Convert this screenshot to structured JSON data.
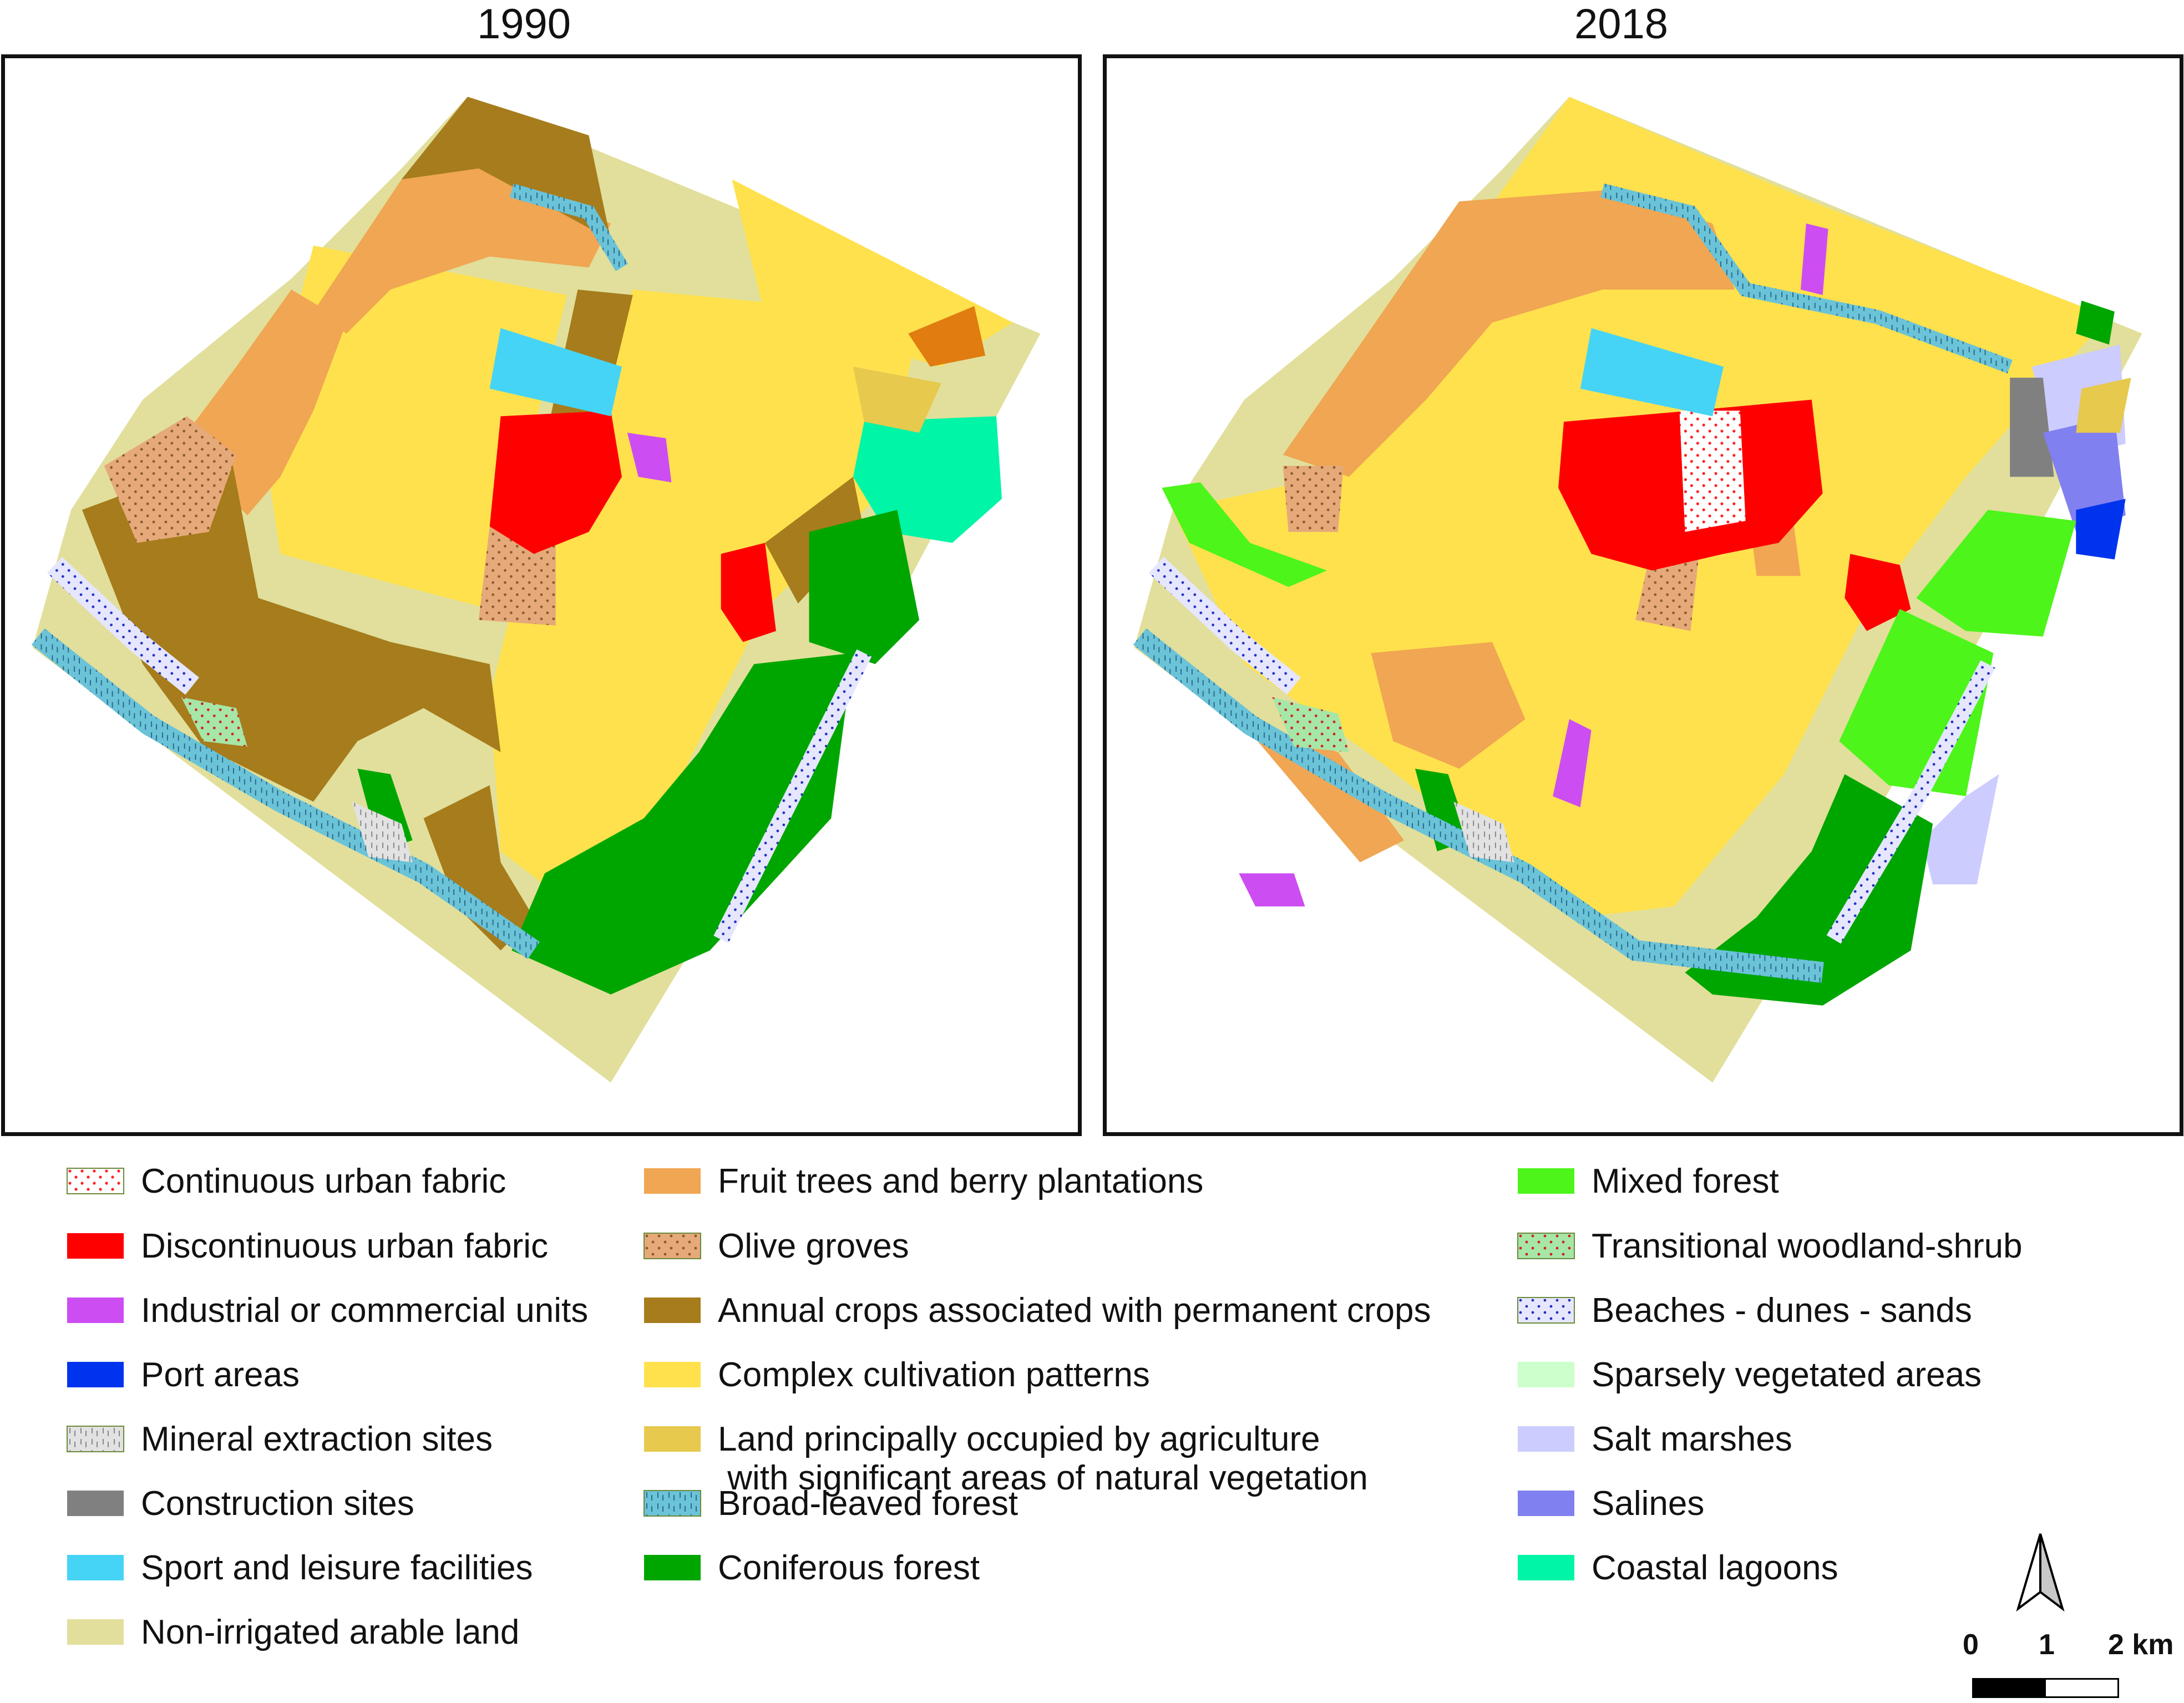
{
  "maps": [
    {
      "title": "1990"
    },
    {
      "title": "2018"
    }
  ],
  "legend": [
    {
      "label": "Continuous urban fabric",
      "color": "#ffffff",
      "pattern": "dots-red"
    },
    {
      "label": "Discontinuous urban fabric",
      "color": "#ff0000"
    },
    {
      "label": "Industrial or commercial units",
      "color": "#cc4df2"
    },
    {
      "label": "Port areas",
      "color": "#0033ee"
    },
    {
      "label": "Mineral extraction sites",
      "color": "#e2e2e2",
      "pattern": "dashes-gray"
    },
    {
      "label": "Construction sites",
      "color": "#808080"
    },
    {
      "label": "Sport and leisure facilities",
      "color": "#45d4f5"
    },
    {
      "label": "Non-irrigated arable land",
      "color": "#e1df9b"
    },
    {
      "label": "Fruit trees and berry plantations",
      "color": "#f0a652"
    },
    {
      "label": "Olive groves",
      "color": "#e6a97a",
      "pattern": "dots-brown"
    },
    {
      "label": "Annual crops associated with permanent crops",
      "color": "#a67c1c"
    },
    {
      "label": "Complex cultivation patterns",
      "color": "#ffe14d"
    },
    {
      "label": "Land principally occupied by agriculture\n with significant areas of natural vegetation",
      "color": "#e6c94d"
    },
    {
      "label": "Broad-leaved forest",
      "color": "#6bc3d8",
      "pattern": "dashes-blue"
    },
    {
      "label": "Coniferous forest",
      "color": "#00a600"
    },
    {
      "label": "Mixed forest",
      "color": "#4df51a"
    },
    {
      "label": "Transitional woodland-shrub",
      "color": "#a6e6a6",
      "pattern": "dots-green"
    },
    {
      "label": "Beaches - dunes - sands",
      "color": "#e6e6ff",
      "pattern": "dots-blue"
    },
    {
      "label": "Sparsely vegetated areas",
      "color": "#ccffcc"
    },
    {
      "label": "Salt marshes",
      "color": "#ccccff"
    },
    {
      "label": "Salines",
      "color": "#8080f0"
    },
    {
      "label": "Coastal lagoons",
      "color": "#00f5a6"
    }
  ],
  "scale": {
    "ticks": [
      "0",
      "1",
      "2 km"
    ]
  },
  "north_arrow": {
    "icon": "north-arrow-icon"
  }
}
